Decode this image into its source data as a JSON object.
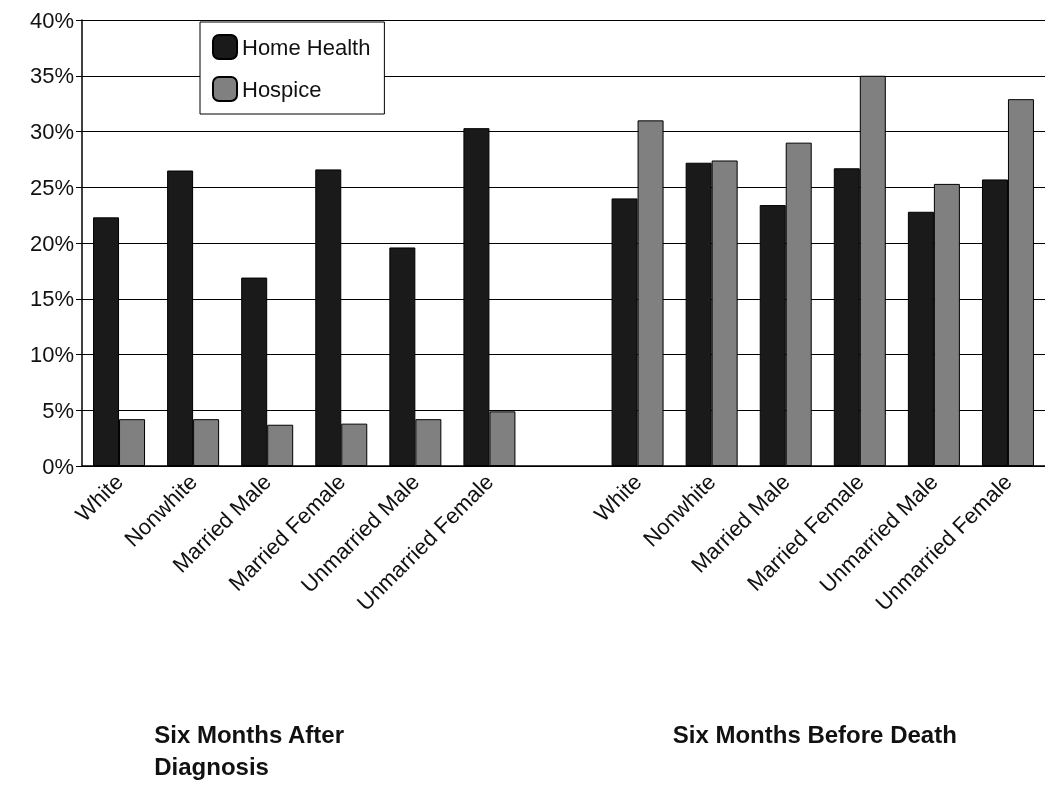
{
  "chart_data": {
    "type": "bar",
    "categories": [
      "White",
      "Nonwhite",
      "Married Male",
      "Married Female",
      "Unmarried Male",
      "Unmarried Female",
      null,
      "White",
      "Nonwhite",
      "Married Male",
      "Married Female",
      "Unmarried Male",
      "Unmarried Female"
    ],
    "series": [
      {
        "name": "Home Health",
        "color": "#1a1a1a",
        "values": [
          22.3,
          26.5,
          16.9,
          26.6,
          19.6,
          30.3,
          null,
          24.0,
          27.2,
          23.4,
          26.7,
          22.8,
          25.7
        ]
      },
      {
        "name": "Hospice",
        "color": "#808080",
        "values": [
          4.2,
          4.2,
          3.7,
          3.8,
          4.2,
          4.9,
          null,
          31.0,
          27.4,
          29.0,
          35.0,
          25.3,
          32.9
        ]
      }
    ],
    "ylim": [
      0,
      40
    ],
    "yticks": [
      {
        "value": 0,
        "label": "0%"
      },
      {
        "value": 5,
        "label": "5%"
      },
      {
        "value": 10,
        "label": "10%"
      },
      {
        "value": 15,
        "label": "15%"
      },
      {
        "value": 20,
        "label": "20%"
      },
      {
        "value": 25,
        "label": "25%"
      },
      {
        "value": 30,
        "label": "30%"
      },
      {
        "value": 35,
        "label": "35%"
      },
      {
        "value": 40,
        "label": "40%"
      }
    ],
    "annotations": [
      "Six Months After\nDiagnosis",
      "Six Months Before Death"
    ],
    "grid": "y",
    "legend": "top left"
  }
}
